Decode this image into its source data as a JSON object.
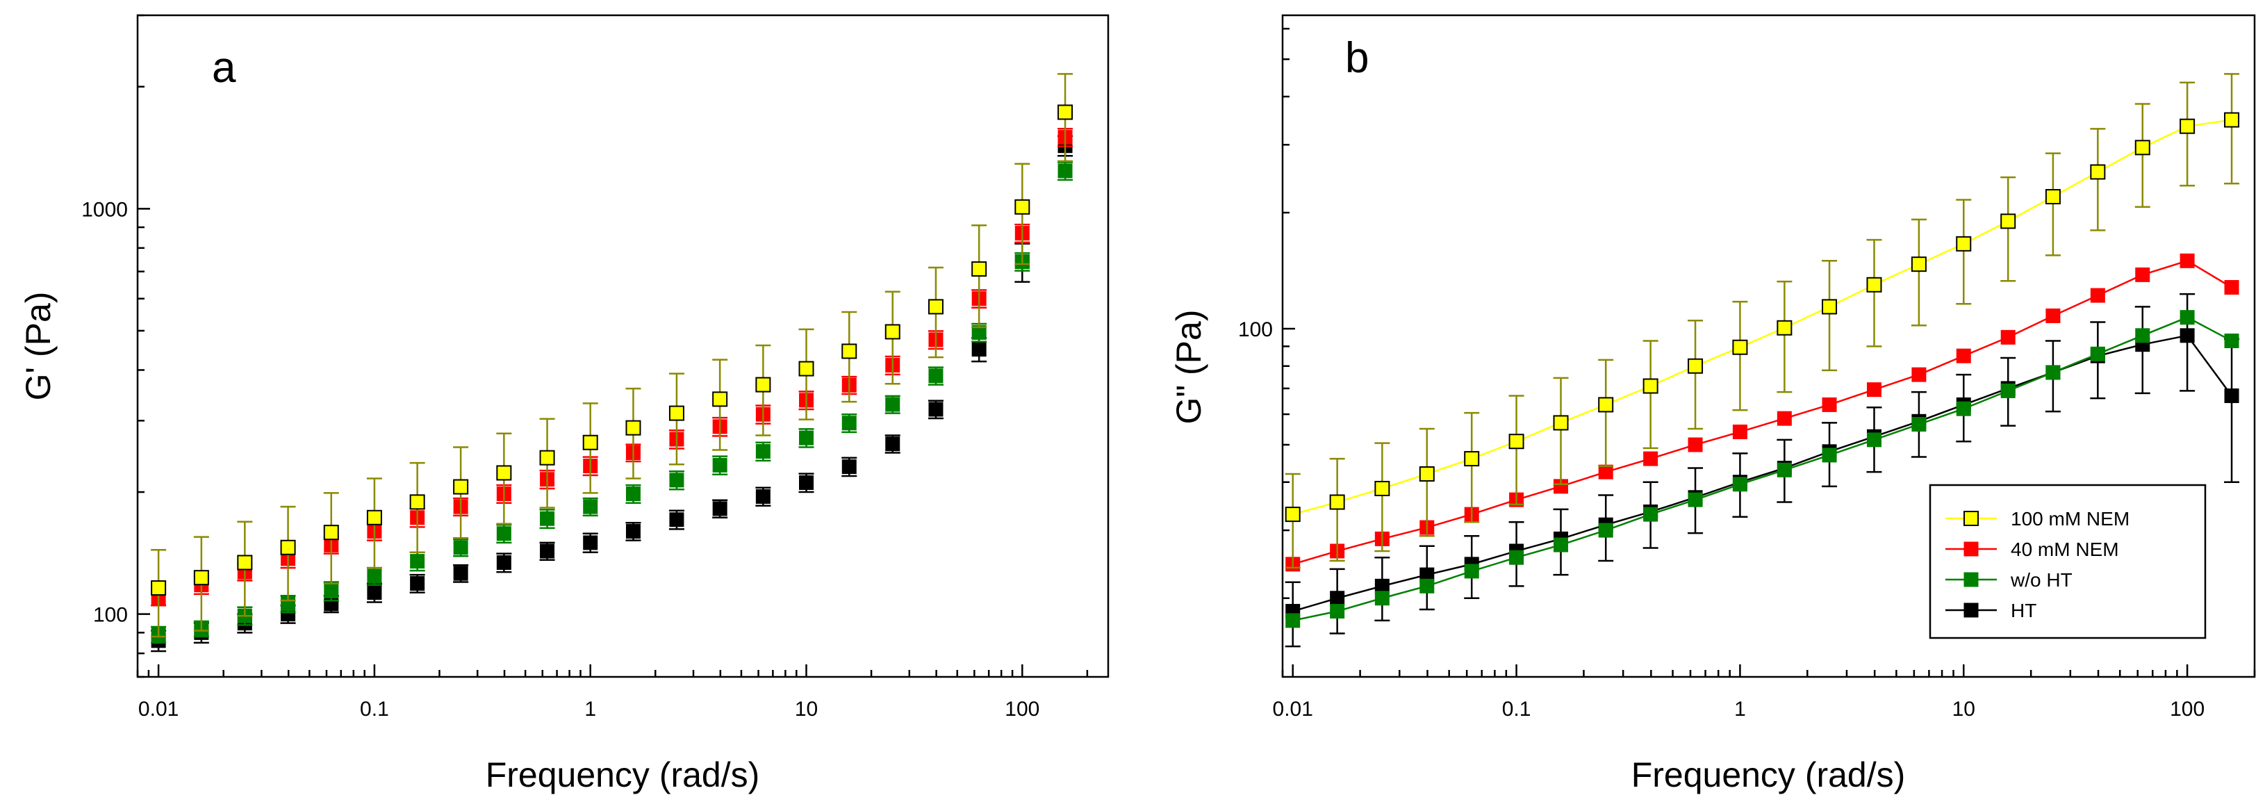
{
  "chart_data": [
    {
      "type": "scatter",
      "panel_label": "a",
      "xlabel": "Frequency (rad/s)",
      "ylabel": "G' (Pa)",
      "xscale": "log",
      "yscale": "log",
      "xlim": [
        0.008,
        250
      ],
      "ylim": [
        70,
        3000
      ],
      "x_ticks": [
        0.01,
        0.1,
        1,
        10,
        100
      ],
      "x_tick_labels": [
        "0.01",
        "0.1",
        "1",
        "10",
        "100"
      ],
      "y_ticks": [
        100,
        1000
      ],
      "y_tick_labels": [
        "100",
        "1000"
      ],
      "x": [
        0.01,
        0.0158,
        0.0251,
        0.0398,
        0.0631,
        0.1,
        0.158,
        0.251,
        0.398,
        0.631,
        1,
        1.58,
        2.51,
        3.98,
        6.31,
        10,
        15.8,
        25.1,
        39.8,
        63.1,
        100,
        158
      ],
      "series": [
        {
          "name": "100 mM NEM",
          "color": "#ffff00",
          "values": [
            116,
            123,
            134,
            146,
            159,
            173,
            189,
            206,
            223,
            243,
            265,
            288,
            313,
            339,
            368,
            403,
            445,
            497,
            573,
            710,
            1010,
            1730
          ],
          "errors": [
            28,
            32,
            35,
            38,
            40,
            43,
            47,
            52,
            56,
            60,
            66,
            72,
            79,
            85,
            92,
            101,
            111,
            127,
            143,
            200,
            280,
            420
          ]
        },
        {
          "name": "40 mM NEM",
          "color": "#ff0000",
          "values": [
            110,
            118,
            127,
            137,
            148,
            160,
            173,
            184,
            198,
            215,
            232,
            250,
            270,
            290,
            311,
            337,
            367,
            411,
            475,
            600,
            870,
            1500
          ],
          "errors": [
            5,
            6,
            6,
            7,
            7,
            8,
            9,
            9,
            10,
            11,
            12,
            12,
            14,
            15,
            16,
            17,
            18,
            21,
            24,
            30,
            44,
            75
          ]
        },
        {
          "name": "w/o HT",
          "color": "#008000",
          "values": [
            89,
            92,
            99,
            106,
            114,
            124,
            135,
            146,
            158,
            172,
            184,
            198,
            214,
            233,
            252,
            272,
            296,
            329,
            387,
            495,
            740,
            1240
          ],
          "errors": [
            4,
            4,
            5,
            5,
            6,
            6,
            7,
            7,
            8,
            9,
            9,
            10,
            11,
            12,
            13,
            14,
            15,
            16,
            19,
            25,
            37,
            62
          ]
        },
        {
          "name": "HT",
          "color": "#000000",
          "values": [
            86,
            90,
            95,
            100,
            106,
            113,
            119,
            126,
            134,
            143,
            150,
            160,
            171,
            182,
            195,
            211,
            231,
            263,
            320,
            450,
            740,
            1430
          ],
          "errors": [
            5,
            5,
            5,
            5,
            5,
            6,
            6,
            6,
            7,
            7,
            8,
            8,
            9,
            9,
            10,
            11,
            12,
            13,
            16,
            30,
            80,
            80
          ]
        }
      ]
    },
    {
      "type": "line",
      "panel_label": "b",
      "xlabel": "Frequency (rad/s)",
      "ylabel": "G\" (Pa)",
      "xscale": "log",
      "yscale": "log",
      "xlim": [
        0.009,
        200
      ],
      "ylim": [
        12.5,
        650
      ],
      "x_ticks": [
        0.01,
        0.1,
        1,
        10,
        100
      ],
      "x_tick_labels": [
        "0.01",
        "0.1",
        "1",
        "10",
        "100"
      ],
      "y_ticks": [
        100
      ],
      "y_tick_labels": [
        "100"
      ],
      "legend_position": "bottom-right",
      "x": [
        0.01,
        0.0158,
        0.0251,
        0.0398,
        0.0631,
        0.1,
        0.158,
        0.251,
        0.398,
        0.631,
        1,
        1.58,
        2.51,
        3.98,
        6.31,
        10,
        15.8,
        25.1,
        39.8,
        63.1,
        100,
        158
      ],
      "series": [
        {
          "name": "100 mM NEM",
          "color": "#ffff00",
          "values": [
            33,
            35.5,
            38.5,
            42,
            46,
            51,
            57,
            63.5,
            71,
            80,
            89.5,
            100.5,
            114,
            130,
            147,
            166,
            190,
            220,
            255,
            295,
            335,
            348
          ],
          "errors": [
            9,
            10.5,
            12,
            13,
            14.5,
            16,
            17.5,
            19.5,
            22,
            25,
            28,
            32,
            36,
            40,
            45,
            50,
            57,
            65,
            75,
            88,
            100,
            110
          ]
        },
        {
          "name": "40 mM NEM",
          "color": "#ff0000",
          "values": [
            24.5,
            26.5,
            28.5,
            30.5,
            33,
            36,
            39,
            42.5,
            46,
            50,
            54,
            58.5,
            63.5,
            69.5,
            76,
            85,
            95,
            108,
            122,
            138,
            150,
            128
          ],
          "errors": []
        },
        {
          "name": "w/o HT",
          "color": "#008000",
          "values": [
            17.5,
            18.5,
            20,
            21.5,
            23.5,
            25.5,
            27.5,
            30,
            33,
            36,
            39.5,
            43,
            47,
            51.5,
            56.5,
            62,
            69,
            77,
            86,
            96,
            107,
            93
          ],
          "errors": []
        },
        {
          "name": "HT",
          "color": "#000000",
          "values": [
            18.5,
            20,
            21.5,
            23,
            24.5,
            26.5,
            28.5,
            31,
            33.5,
            36.5,
            40,
            43.5,
            48,
            52.5,
            57.5,
            63.5,
            70,
            77,
            85,
            91,
            96,
            67
          ],
          "errors": [
            3.5,
            3.8,
            4,
            4.3,
            4.5,
            5,
            5.5,
            6,
            6.5,
            7,
            7.5,
            8,
            9,
            10,
            11,
            12.5,
            14,
            16,
            19,
            23,
            27,
            27
          ]
        }
      ]
    }
  ]
}
